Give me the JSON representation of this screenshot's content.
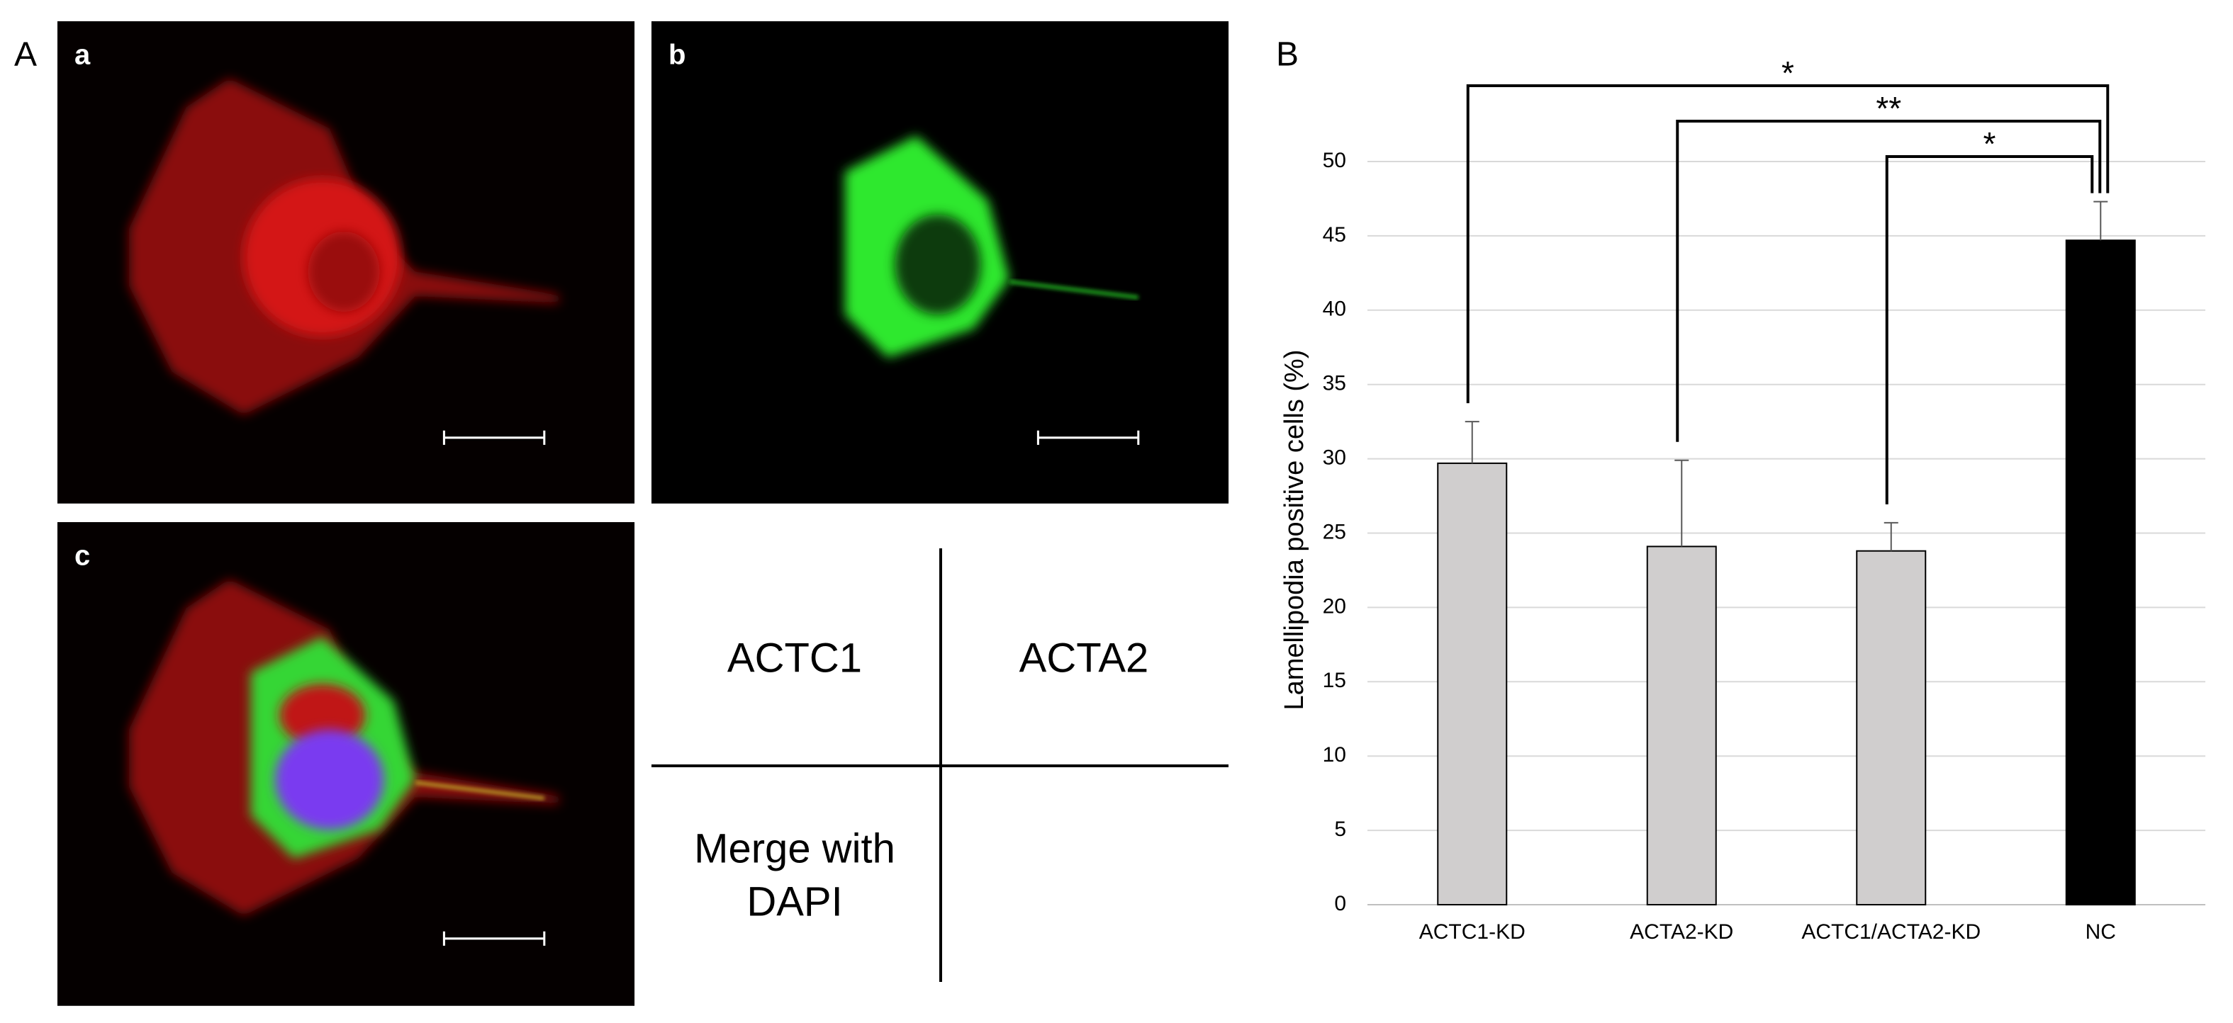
{
  "panels": {
    "A": {
      "label": "A",
      "images": [
        {
          "label": "a"
        },
        {
          "label": "b"
        },
        {
          "label": "c"
        }
      ],
      "legend": {
        "top_left": "ACTC1",
        "top_right": "ACTA2",
        "bottom_left": [
          "Merge with",
          "DAPI"
        ]
      }
    },
    "B": {
      "label": "B"
    }
  },
  "chart_data": {
    "type": "bar",
    "ylabel": "Lamellipodia positive cells (%)",
    "categories": [
      "ACTC1-KD",
      "ACTA2-KD",
      "ACTC1/ACTA2-KD",
      "NC"
    ],
    "values": [
      29.7,
      24.1,
      23.8,
      44.7
    ],
    "errors": [
      2.8,
      5.8,
      1.9,
      2.6
    ],
    "colors": [
      "#d0cece",
      "#d0cece",
      "#d0cece",
      "#000000"
    ],
    "ylim": [
      0,
      50
    ],
    "yticks": [
      0,
      5,
      10,
      15,
      20,
      25,
      30,
      35,
      40,
      45,
      50
    ],
    "grid": true,
    "annotations": [
      {
        "label": "*",
        "from": 0,
        "to": 3
      },
      {
        "label": "**",
        "from": 1,
        "to": 3
      },
      {
        "label": "*",
        "from": 2,
        "to": 3
      }
    ]
  }
}
